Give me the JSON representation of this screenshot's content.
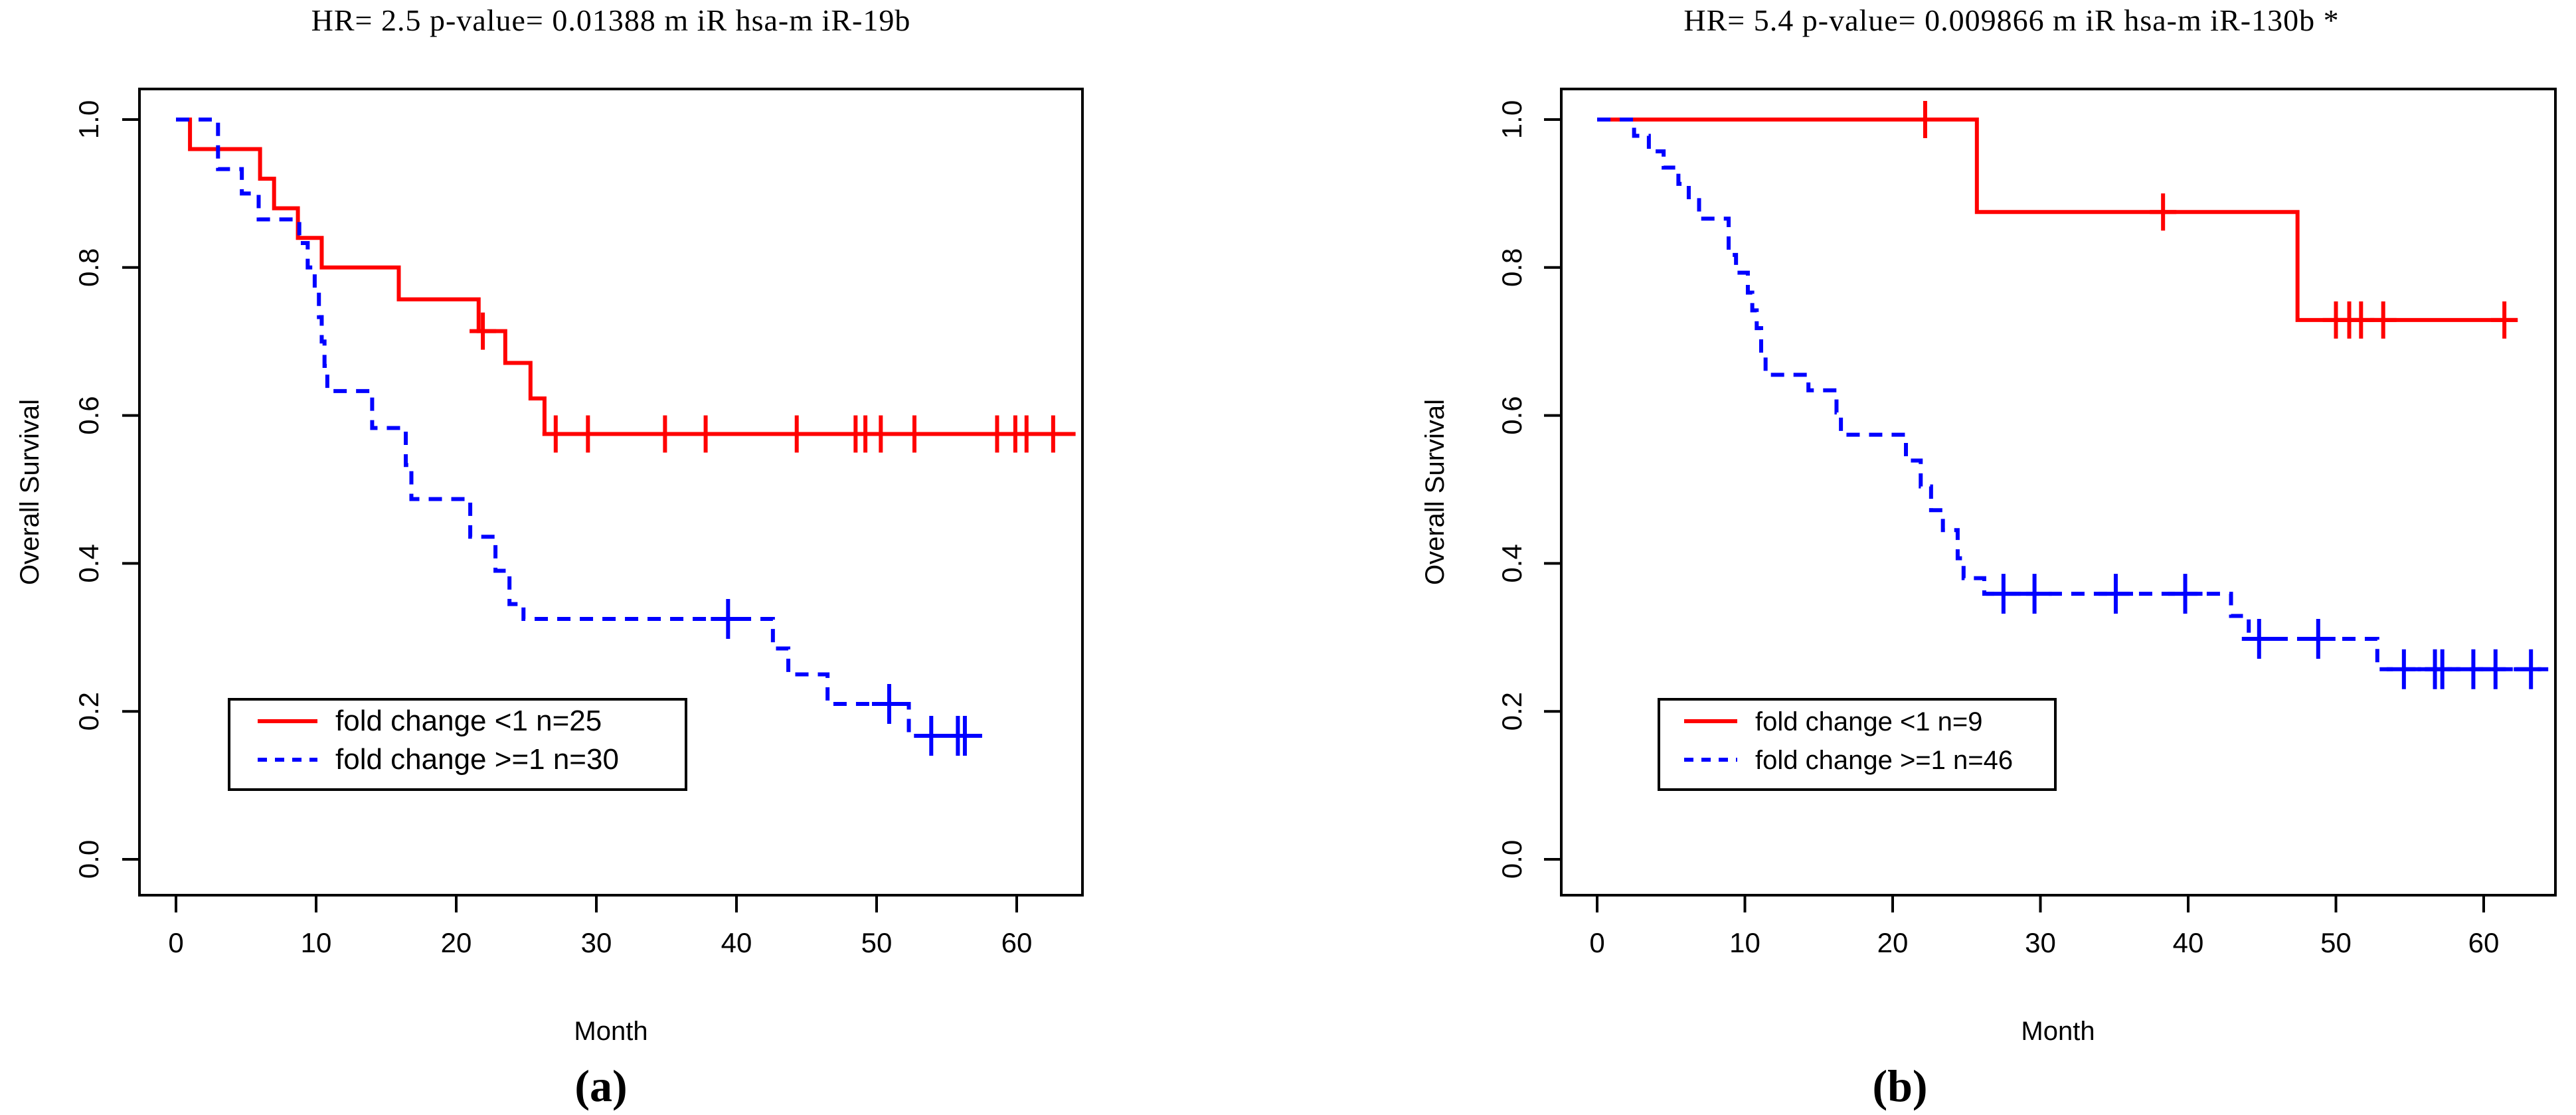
{
  "figure": {
    "background": "#ffffff",
    "caption_a": "(a)",
    "caption_b": "(b)"
  },
  "chart_data": [
    {
      "type": "line",
      "subtype": "kaplan-meier-step",
      "panel_label": "(a)",
      "title": "HR= 2.5  p-value= 0.01388 m iR hsa-m iR-19b",
      "hr": "2.5",
      "p_value": "0.01388",
      "mirna": "hsa-miR-19b",
      "xlabel": "Month",
      "ylabel": "Overall Survival",
      "xlim": [
        0,
        64
      ],
      "ylim": [
        0.0,
        1.0
      ],
      "grid": false,
      "legend_position": "lower-left",
      "xticks": [
        "0",
        "10",
        "20",
        "30",
        "40",
        "50",
        "60"
      ],
      "yticks": [
        "0.0",
        "0.2",
        "0.4",
        "0.6",
        "0.8",
        "1.0"
      ],
      "series": [
        {
          "name": "fold change <1 n=25",
          "color": "#ff0000",
          "style": "solid",
          "steps": [
            [
              0,
              1.0
            ],
            [
              1,
              0.96
            ],
            [
              6,
              0.92
            ],
            [
              7,
              0.88
            ],
            [
              8.7,
              0.84
            ],
            [
              10.4,
              0.8
            ],
            [
              15.9,
              0.757
            ],
            [
              21.6,
              0.714
            ],
            [
              23.5,
              0.671
            ],
            [
              25.3,
              0.623
            ],
            [
              26.3,
              0.575
            ]
          ],
          "end": 64.2,
          "censors": [
            [
              21.9,
              0.714
            ],
            [
              27.1,
              0.575
            ],
            [
              29.4,
              0.575
            ],
            [
              34.9,
              0.575
            ],
            [
              37.8,
              0.575
            ],
            [
              44.3,
              0.575
            ],
            [
              48.5,
              0.575
            ],
            [
              49.2,
              0.575
            ],
            [
              50.3,
              0.575
            ],
            [
              52.7,
              0.575
            ],
            [
              58.6,
              0.575
            ],
            [
              59.9,
              0.575
            ],
            [
              60.7,
              0.575
            ],
            [
              62.6,
              0.575
            ]
          ]
        },
        {
          "name": "fold change >=1 n=30",
          "color": "#0000ff",
          "style": "dashed",
          "steps": [
            [
              0,
              1.0
            ],
            [
              3,
              0.933
            ],
            [
              4.7,
              0.9
            ],
            [
              5.9,
              0.865
            ],
            [
              8.8,
              0.833
            ],
            [
              9.4,
              0.8
            ],
            [
              9.9,
              0.767
            ],
            [
              10.2,
              0.733
            ],
            [
              10.4,
              0.7
            ],
            [
              10.6,
              0.667
            ],
            [
              10.8,
              0.633
            ],
            [
              14,
              0.583
            ],
            [
              16.4,
              0.533
            ],
            [
              16.8,
              0.487
            ],
            [
              21,
              0.436
            ],
            [
              22.8,
              0.39
            ],
            [
              23.8,
              0.345
            ],
            [
              24.8,
              0.325
            ],
            [
              42.6,
              0.285
            ],
            [
              43.7,
              0.25
            ],
            [
              46.5,
              0.21
            ],
            [
              52.3,
              0.167
            ]
          ],
          "end": 57.2,
          "censors": [
            [
              39.4,
              0.325
            ],
            [
              50.9,
              0.21
            ],
            [
              53.9,
              0.167
            ],
            [
              55.8,
              0.167
            ],
            [
              56.3,
              0.167
            ]
          ]
        }
      ]
    },
    {
      "type": "line",
      "subtype": "kaplan-meier-step",
      "panel_label": "(b)",
      "title": "HR= 5.4  p-value= 0.009866 m iR hsa-m iR-130b *",
      "hr": "5.4",
      "p_value": "0.009866",
      "mirna": "hsa-miR-130b",
      "xlabel": "Month",
      "ylabel": "Overall Survival",
      "xlim": [
        0,
        64
      ],
      "ylim": [
        0.0,
        1.0
      ],
      "grid": false,
      "legend_position": "lower-left",
      "xticks": [
        "0",
        "10",
        "20",
        "30",
        "40",
        "50",
        "60"
      ],
      "yticks": [
        "0.0",
        "0.2",
        "0.4",
        "0.6",
        "0.8",
        "1.0"
      ],
      "series": [
        {
          "name": "fold change <1 n=9",
          "color": "#ff0000",
          "style": "solid",
          "steps": [
            [
              0,
              1.0
            ],
            [
              25.7,
              0.875
            ],
            [
              47.4,
              0.729
            ]
          ],
          "end": 62.3,
          "censors": [
            [
              22.2,
              1.0
            ],
            [
              38.3,
              0.875
            ],
            [
              50.0,
              0.729
            ],
            [
              50.9,
              0.729
            ],
            [
              51.7,
              0.729
            ],
            [
              53.2,
              0.729
            ],
            [
              61.4,
              0.729
            ]
          ]
        },
        {
          "name": "fold change >=1 n=46",
          "color": "#0000ff",
          "style": "dashed",
          "steps": [
            [
              0,
              1.0
            ],
            [
              2.5,
              0.978
            ],
            [
              3.5,
              0.957
            ],
            [
              4.5,
              0.935
            ],
            [
              5.5,
              0.913
            ],
            [
              6.2,
              0.891
            ],
            [
              6.9,
              0.866
            ],
            [
              8.9,
              0.817
            ],
            [
              9.4,
              0.793
            ],
            [
              10.2,
              0.766
            ],
            [
              10.5,
              0.742
            ],
            [
              10.8,
              0.718
            ],
            [
              11.1,
              0.679
            ],
            [
              11.4,
              0.655
            ],
            [
              14.3,
              0.634
            ],
            [
              16.2,
              0.604
            ],
            [
              16.5,
              0.574
            ],
            [
              20.9,
              0.539
            ],
            [
              21.9,
              0.504
            ],
            [
              22.6,
              0.472
            ],
            [
              23.4,
              0.445
            ],
            [
              24.4,
              0.407
            ],
            [
              24.8,
              0.38
            ],
            [
              26.2,
              0.359
            ],
            [
              42.9,
              0.329
            ],
            [
              44.1,
              0.298
            ],
            [
              52.8,
              0.257
            ]
          ],
          "end": 63.9,
          "censors": [
            [
              27.5,
              0.359
            ],
            [
              29.6,
              0.359
            ],
            [
              35.1,
              0.359
            ],
            [
              39.8,
              0.359
            ],
            [
              44.8,
              0.298
            ],
            [
              48.8,
              0.298
            ],
            [
              54.6,
              0.257
            ],
            [
              56.7,
              0.257
            ],
            [
              57.2,
              0.257
            ],
            [
              59.3,
              0.257
            ],
            [
              60.8,
              0.257
            ],
            [
              63.2,
              0.257
            ]
          ]
        }
      ]
    }
  ]
}
